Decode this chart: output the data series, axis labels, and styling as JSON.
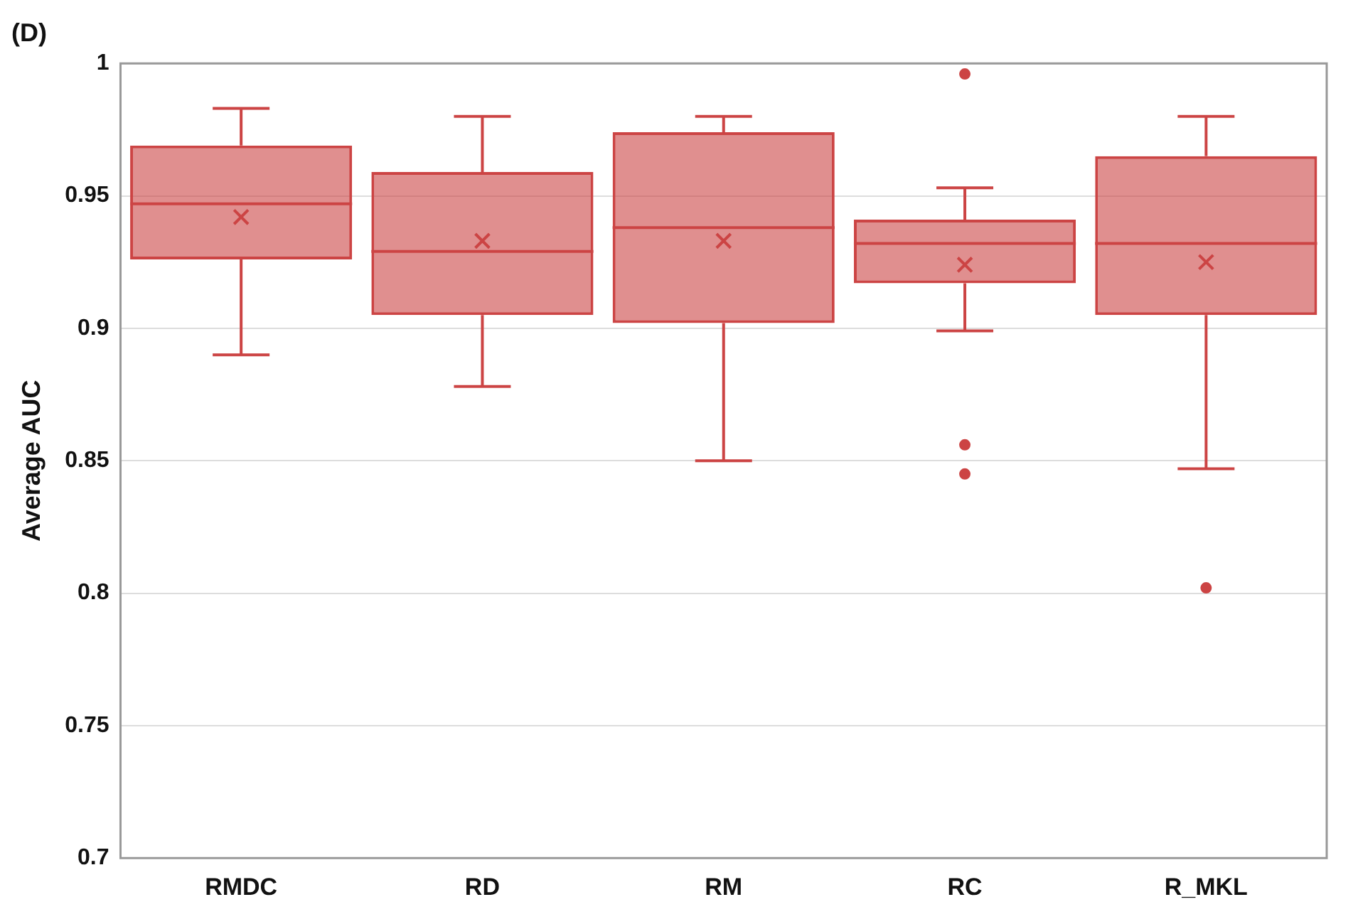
{
  "chart_data": {
    "type": "box",
    "title": "(D)",
    "ylabel": "Average AUC",
    "categories": [
      "RMDC",
      "RD",
      "RM",
      "RC",
      "R_MKL"
    ],
    "color": "#cc4444",
    "boxes": [
      {
        "low": 0.89,
        "q1": 0.926,
        "median": 0.947,
        "q3": 0.969,
        "high": 0.983,
        "mean": 0.942
      },
      {
        "low": 0.878,
        "q1": 0.905,
        "median": 0.929,
        "q3": 0.959,
        "high": 0.98,
        "mean": 0.933
      },
      {
        "low": 0.85,
        "q1": 0.902,
        "median": 0.938,
        "q3": 0.974,
        "high": 0.98,
        "mean": 0.933
      },
      {
        "low": 0.899,
        "q1": 0.917,
        "median": 0.932,
        "q3": 0.941,
        "high": 0.953,
        "mean": 0.924,
        "outliers": [
          0.996,
          0.856,
          0.845
        ]
      },
      {
        "low": 0.847,
        "q1": 0.905,
        "median": 0.932,
        "q3": 0.965,
        "high": 0.98,
        "mean": 0.925,
        "outliers": [
          0.802
        ]
      }
    ],
    "ylim": [
      0.7,
      1
    ],
    "yticks": [
      0.7,
      0.75,
      0.8,
      0.85,
      0.9,
      0.95,
      1
    ],
    "grid": "y",
    "legend": false
  }
}
